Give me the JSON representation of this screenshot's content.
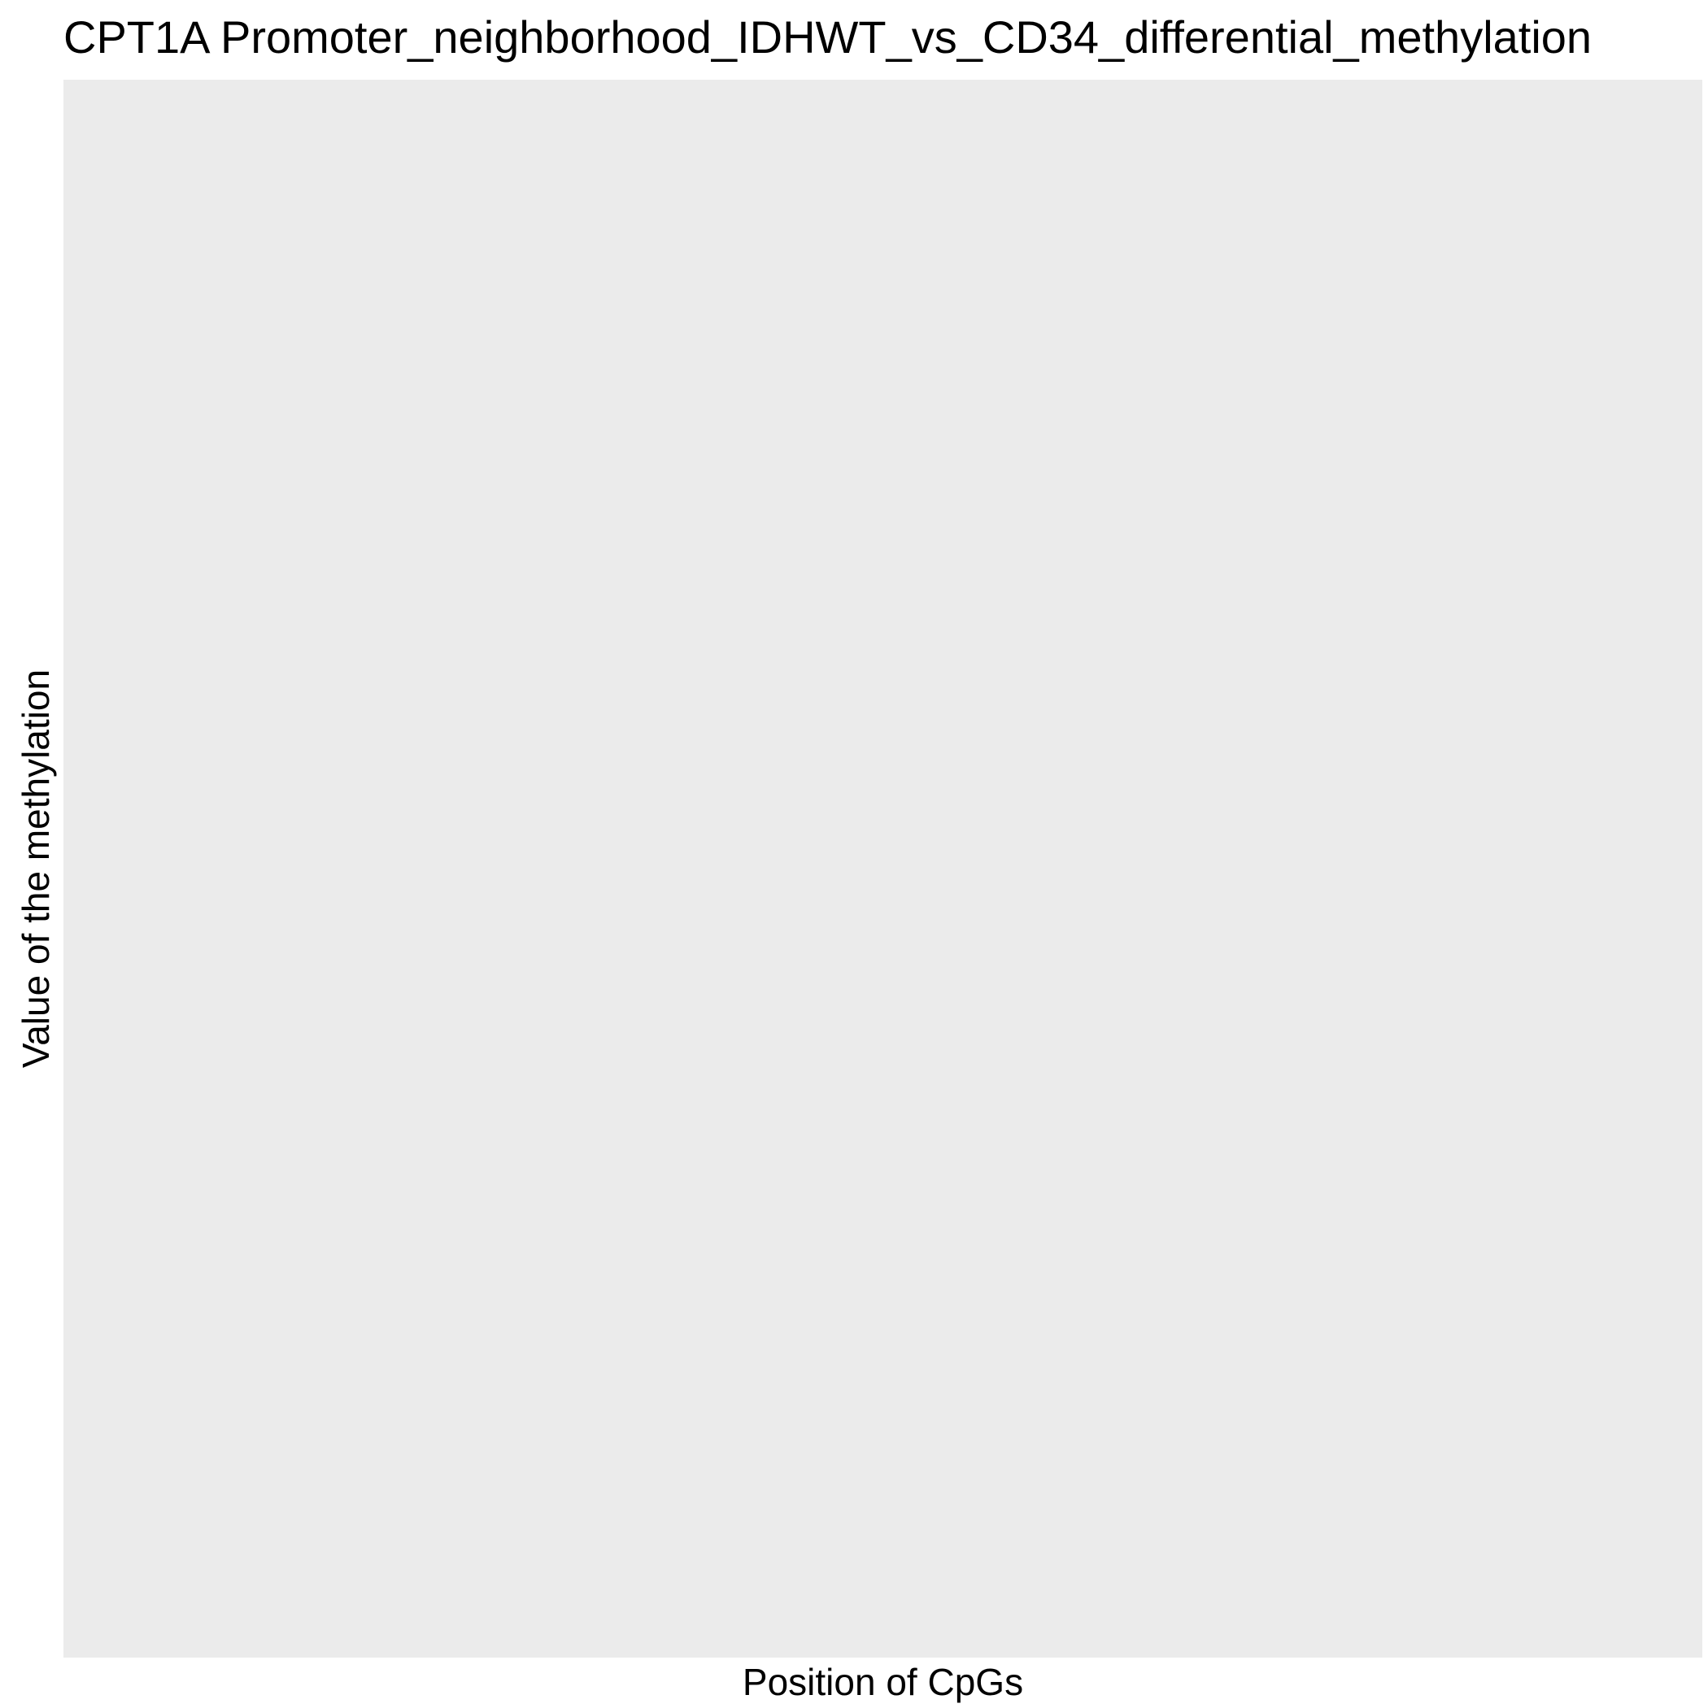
{
  "chart_data": {
    "type": "line",
    "title": "CPT1A Promoter_neighborhood_IDHWT_vs_CD34_differential_methylation",
    "xlabel": "Position of CpGs",
    "ylabel": "Value of the methylation",
    "series": [],
    "grid": false,
    "legend": "none",
    "panel_color": "#EBEBEB"
  }
}
